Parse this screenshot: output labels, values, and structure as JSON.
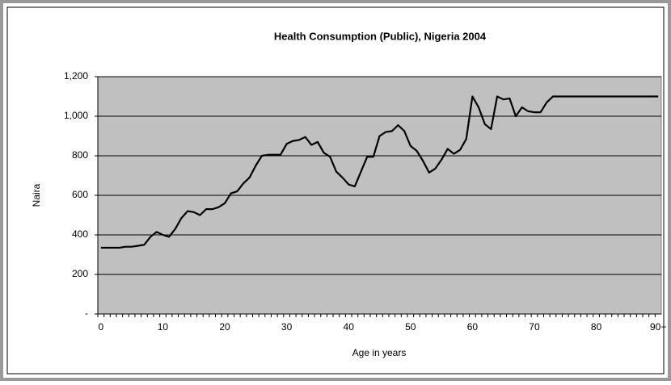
{
  "chart_data": {
    "type": "line",
    "title": "Health Consumption (Public), Nigeria 2004",
    "xlabel": "Age in years",
    "ylabel": "Naira",
    "categories": [
      "0",
      null,
      null,
      null,
      null,
      null,
      null,
      null,
      null,
      null,
      "10",
      null,
      null,
      null,
      null,
      null,
      null,
      null,
      null,
      null,
      "20",
      null,
      null,
      null,
      null,
      null,
      null,
      null,
      null,
      null,
      "30",
      null,
      null,
      null,
      null,
      null,
      null,
      null,
      null,
      null,
      "40",
      null,
      null,
      null,
      null,
      null,
      null,
      null,
      null,
      null,
      "50",
      null,
      null,
      null,
      null,
      null,
      null,
      null,
      null,
      null,
      "60",
      null,
      null,
      null,
      null,
      null,
      null,
      null,
      null,
      null,
      "70",
      null,
      null,
      null,
      null,
      null,
      null,
      null,
      null,
      null,
      "80",
      null,
      null,
      null,
      null,
      null,
      null,
      null,
      null,
      null,
      "90+"
    ],
    "values": [
      335,
      335,
      335,
      335,
      340,
      340,
      345,
      350,
      390,
      415,
      400,
      390,
      430,
      485,
      520,
      515,
      500,
      530,
      530,
      540,
      560,
      610,
      620,
      660,
      690,
      750,
      800,
      805,
      805,
      805,
      860,
      875,
      880,
      895,
      855,
      870,
      815,
      795,
      720,
      690,
      655,
      645,
      720,
      795,
      795,
      900,
      920,
      925,
      955,
      925,
      850,
      825,
      775,
      715,
      735,
      780,
      835,
      810,
      830,
      885,
      1100,
      1045,
      960,
      935,
      1100,
      1085,
      1090,
      1000,
      1045,
      1025,
      1020,
      1020,
      1070,
      1100,
      1100,
      1100,
      1100,
      1100,
      1100,
      1100,
      1100,
      1100,
      1100,
      1100,
      1100,
      1100,
      1100,
      1100,
      1100,
      1100,
      1100
    ],
    "color": "#000000",
    "ylim": [
      0,
      1200
    ],
    "yticks": [
      {
        "value": 0,
        "label": "-"
      },
      200,
      400,
      600,
      800,
      {
        "value": 1000,
        "label": "1,000"
      },
      {
        "value": 1200,
        "label": "1,200"
      }
    ],
    "grid": true
  }
}
